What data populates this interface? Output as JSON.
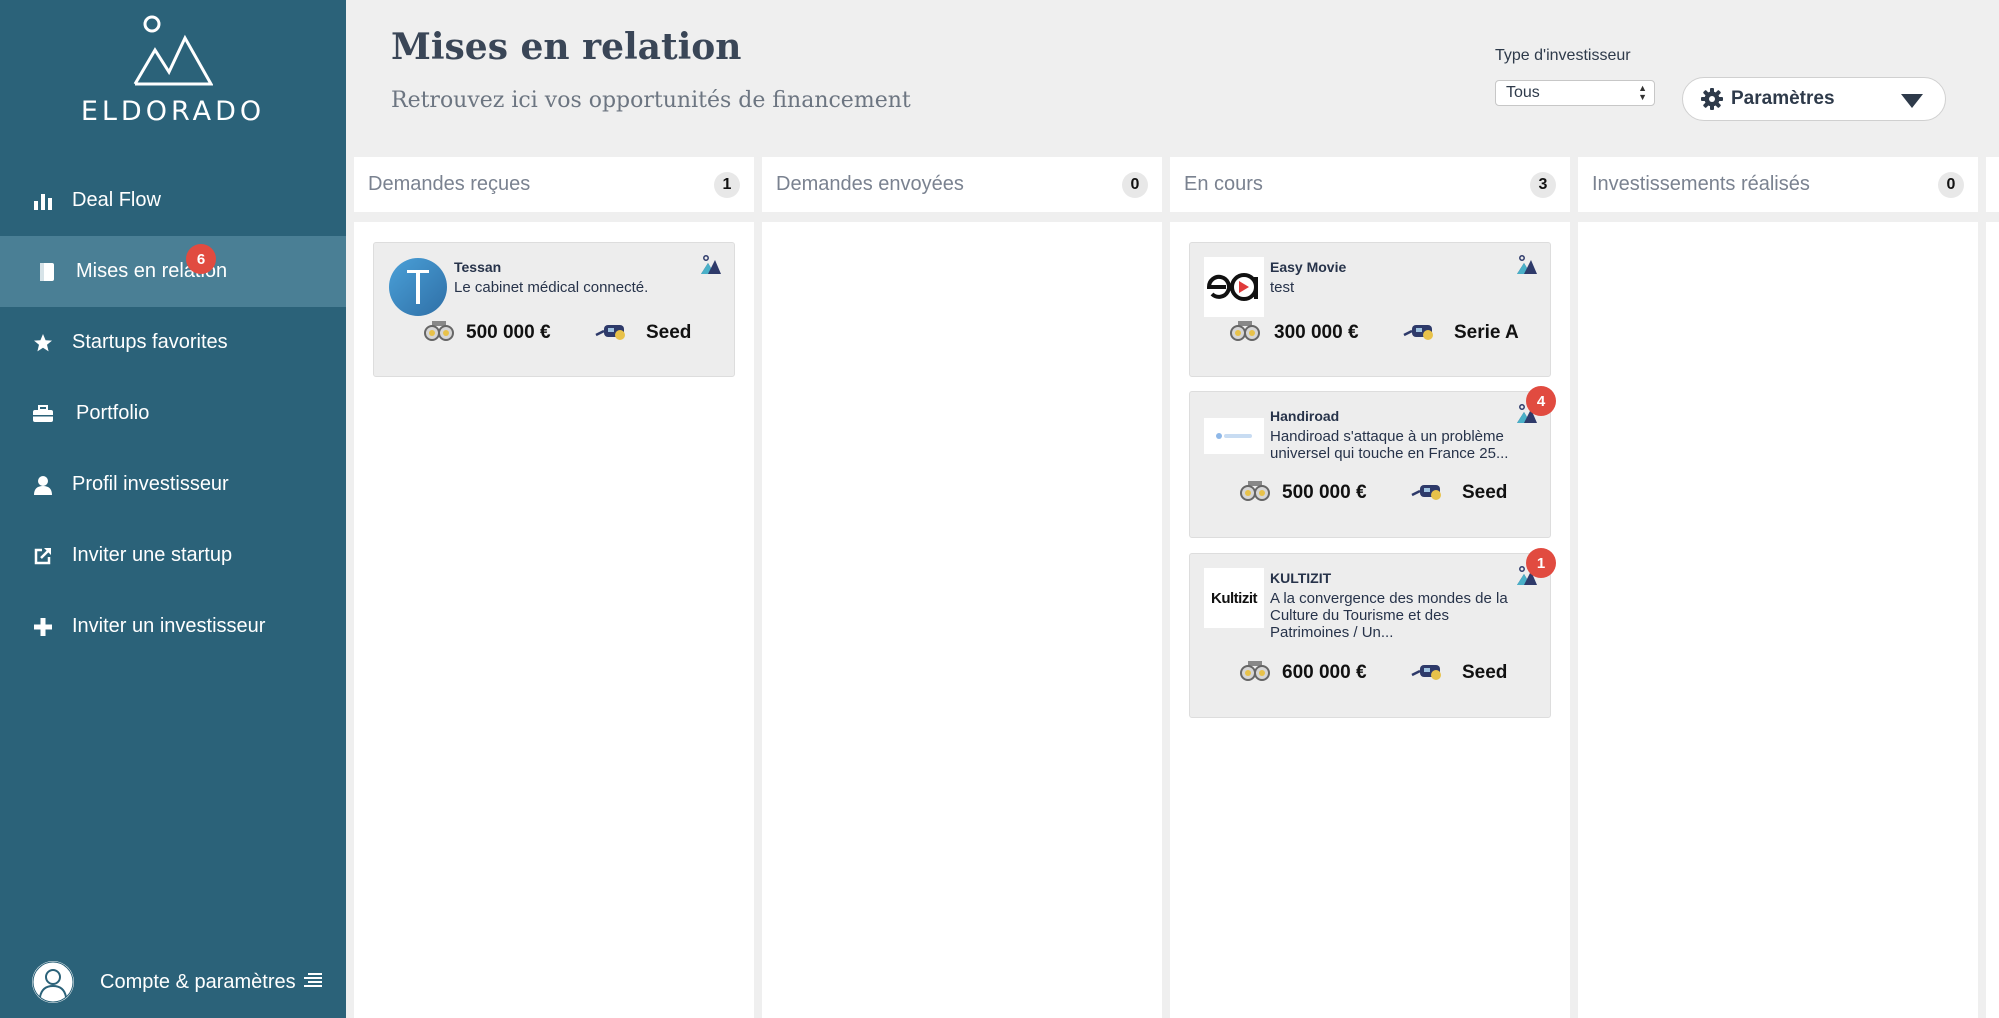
{
  "sidebar": {
    "brand": "ELDORADO",
    "items": [
      {
        "label": "Deal Flow",
        "icon": "bar-chart-icon"
      },
      {
        "label": "Mises en relation",
        "icon": "book-icon",
        "badge": "6",
        "active": true
      },
      {
        "label": "Startups favorites",
        "icon": "star-icon"
      },
      {
        "label": "Portfolio",
        "icon": "briefcase-icon"
      },
      {
        "label": "Profil investisseur",
        "icon": "user-icon"
      },
      {
        "label": "Inviter une startup",
        "icon": "share-icon"
      },
      {
        "label": "Inviter un investisseur",
        "icon": "plus-icon"
      }
    ],
    "account_label": "Compte & paramètres"
  },
  "header": {
    "title": "Mises en relation",
    "subtitle": "Retrouvez ici vos opportunités de financement",
    "filter_label": "Type d'investisseur",
    "filter_value": "Tous",
    "params_label": "Paramètres"
  },
  "columns": [
    {
      "title": "Demandes reçues",
      "count": "1"
    },
    {
      "title": "Demandes envoyées",
      "count": "0"
    },
    {
      "title": "En cours",
      "count": "3"
    },
    {
      "title": "Investissements réalisés",
      "count": "0"
    }
  ],
  "cards": {
    "tessan": {
      "name": "Tessan",
      "desc": "Le cabinet médical connecté.",
      "amount": "500 000 €",
      "stage": "Seed"
    },
    "easymovie": {
      "name": "Easy Movie",
      "desc": "test",
      "amount": "300 000 €",
      "stage": "Serie A"
    },
    "handiroad": {
      "name": "Handiroad",
      "desc": "Handiroad s'attaque à un problème universel qui touche en France 25...",
      "amount": "500 000 €",
      "stage": "Seed",
      "badge": "4"
    },
    "kultizit": {
      "name": "KULTIZIT",
      "desc": "A la convergence des mondes de la Culture du Tourisme et des Patrimoines / Un...",
      "amount": "600 000 €",
      "stage": "Seed",
      "badge": "1",
      "logo_text": "Kultizit"
    }
  }
}
